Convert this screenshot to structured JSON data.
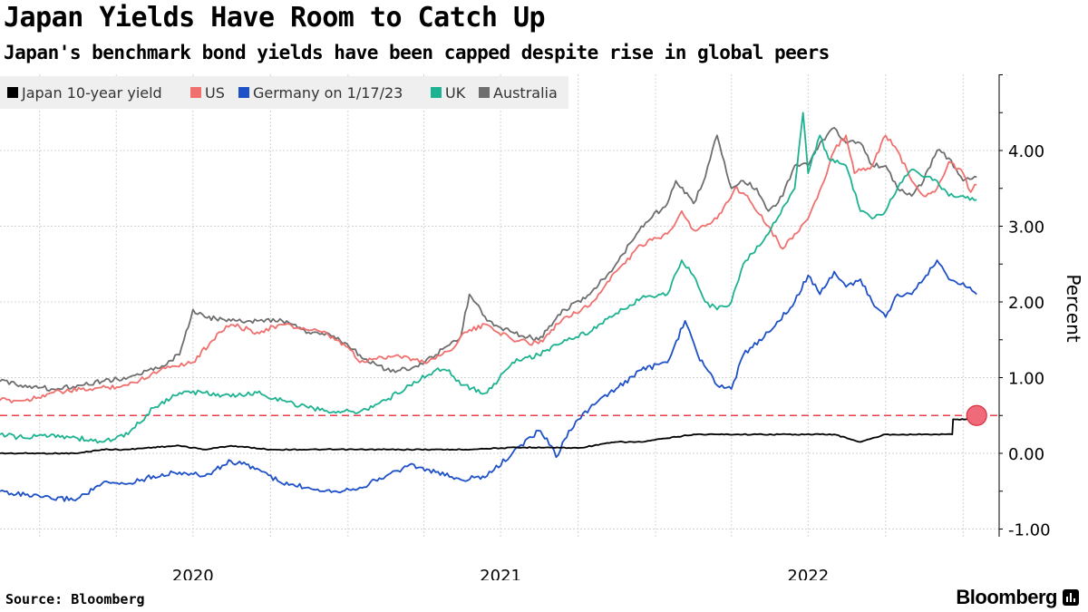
{
  "header": {
    "title": "Japan Yields Have Room to Catch Up",
    "subtitle": "Japan's benchmark bond yields have been capped despite rise in global peers"
  },
  "footer": {
    "source": "Source: Bloomberg",
    "brand": "Bloomberg"
  },
  "icons": {
    "brand": "bloomberg-logo-icon"
  },
  "chart_data": {
    "type": "line",
    "title": "Japan Yields Have Room to Catch Up",
    "subtitle": "Japan's benchmark bond yields have been capped despite rise in global peers",
    "ylabel": "Percent",
    "ylim": [
      -1.0,
      5.0
    ],
    "yticks": [
      -1.0,
      0.0,
      1.0,
      2.0,
      3.0,
      4.0
    ],
    "ytick_labels": [
      "-1.00",
      "0.00",
      "1.00",
      "2.00",
      "3.00",
      "4.00"
    ],
    "x_range": [
      "2019-11-15",
      "2023-01-20"
    ],
    "xtick_labels": [
      {
        "label": "2020",
        "date": "2020-07-01"
      },
      {
        "label": "2021",
        "date": "2021-07-01"
      },
      {
        "label": "2022",
        "date": "2022-07-01"
      }
    ],
    "grid": true,
    "legend_position": "top-left",
    "reference_line": {
      "value": 0.5,
      "color": "#e8404a",
      "style": "dashed"
    },
    "highlight_point": {
      "date": "2023-01-17",
      "value": 0.5,
      "color": "#f06b7a"
    },
    "series": [
      {
        "name": "Japan 10-year yield",
        "color": "#000000",
        "points": [
          [
            "2019-11-15",
            0.0
          ],
          [
            "2020-01-01",
            0.0
          ],
          [
            "2020-02-15",
            0.0
          ],
          [
            "2020-03-15",
            0.05
          ],
          [
            "2020-04-15",
            0.05
          ],
          [
            "2020-05-15",
            0.08
          ],
          [
            "2020-06-15",
            0.1
          ],
          [
            "2020-07-15",
            0.05
          ],
          [
            "2020-08-15",
            0.1
          ],
          [
            "2020-10-01",
            0.05
          ],
          [
            "2020-12-01",
            0.05
          ],
          [
            "2021-01-01",
            0.05
          ],
          [
            "2021-02-15",
            0.05
          ],
          [
            "2021-03-15",
            0.05
          ],
          [
            "2021-05-15",
            0.05
          ],
          [
            "2021-07-01",
            0.07
          ],
          [
            "2021-08-15",
            0.08
          ],
          [
            "2021-10-01",
            0.07
          ],
          [
            "2021-11-15",
            0.15
          ],
          [
            "2021-12-15",
            0.15
          ],
          [
            "2022-01-15",
            0.2
          ],
          [
            "2022-02-15",
            0.25
          ],
          [
            "2022-03-15",
            0.25
          ],
          [
            "2022-05-01",
            0.25
          ],
          [
            "2022-06-15",
            0.25
          ],
          [
            "2022-08-01",
            0.25
          ],
          [
            "2022-09-01",
            0.15
          ],
          [
            "2022-10-01",
            0.25
          ],
          [
            "2022-11-15",
            0.25
          ],
          [
            "2022-12-01",
            0.25
          ],
          [
            "2022-12-19",
            0.25
          ],
          [
            "2022-12-20",
            0.45
          ],
          [
            "2023-01-05",
            0.45
          ],
          [
            "2023-01-17",
            0.5
          ]
        ]
      },
      {
        "name": "US",
        "color": "#f0706e",
        "points": [
          [
            "2019-11-15",
            0.7
          ],
          [
            "2019-12-15",
            0.7
          ],
          [
            "2020-01-15",
            0.8
          ],
          [
            "2020-03-01",
            0.85
          ],
          [
            "2020-04-15",
            0.9
          ],
          [
            "2020-06-01",
            1.15
          ],
          [
            "2020-07-01",
            1.2
          ],
          [
            "2020-08-01",
            1.6
          ],
          [
            "2020-08-15",
            1.7
          ],
          [
            "2020-09-15",
            1.6
          ],
          [
            "2020-10-15",
            1.7
          ],
          [
            "2020-12-01",
            1.6
          ],
          [
            "2021-01-01",
            1.4
          ],
          [
            "2021-01-15",
            1.2
          ],
          [
            "2021-02-01",
            1.25
          ],
          [
            "2021-03-01",
            1.3
          ],
          [
            "2021-04-01",
            1.2
          ],
          [
            "2021-05-01",
            1.35
          ],
          [
            "2021-05-20",
            1.6
          ],
          [
            "2021-06-15",
            1.7
          ],
          [
            "2021-07-15",
            1.5
          ],
          [
            "2021-08-15",
            1.45
          ],
          [
            "2021-09-15",
            1.8
          ],
          [
            "2021-10-15",
            1.95
          ],
          [
            "2021-11-15",
            2.4
          ],
          [
            "2021-12-15",
            2.75
          ],
          [
            "2022-01-15",
            2.9
          ],
          [
            "2022-02-01",
            3.2
          ],
          [
            "2022-02-15",
            2.95
          ],
          [
            "2022-03-01",
            3.0
          ],
          [
            "2022-03-15",
            3.1
          ],
          [
            "2022-04-05",
            3.5
          ],
          [
            "2022-04-20",
            3.4
          ],
          [
            "2022-05-15",
            3.0
          ],
          [
            "2022-06-01",
            2.7
          ],
          [
            "2022-06-15",
            2.9
          ],
          [
            "2022-07-01",
            3.1
          ],
          [
            "2022-07-20",
            3.6
          ],
          [
            "2022-08-01",
            4.0
          ],
          [
            "2022-08-15",
            4.2
          ],
          [
            "2022-08-25",
            3.7
          ],
          [
            "2022-09-15",
            3.8
          ],
          [
            "2022-10-01",
            4.2
          ],
          [
            "2022-10-15",
            4.0
          ],
          [
            "2022-11-01",
            3.6
          ],
          [
            "2022-11-15",
            3.4
          ],
          [
            "2022-12-01",
            3.5
          ],
          [
            "2022-12-15",
            3.85
          ],
          [
            "2023-01-01",
            3.7
          ],
          [
            "2023-01-10",
            3.45
          ],
          [
            "2023-01-17",
            3.55
          ]
        ]
      },
      {
        "name": "Germany on 1/17/23",
        "color": "#1e50c8",
        "points": [
          [
            "2019-11-15",
            -0.5
          ],
          [
            "2019-12-15",
            -0.55
          ],
          [
            "2020-01-15",
            -0.6
          ],
          [
            "2020-02-15",
            -0.6
          ],
          [
            "2020-03-15",
            -0.4
          ],
          [
            "2020-04-15",
            -0.4
          ],
          [
            "2020-05-15",
            -0.3
          ],
          [
            "2020-06-15",
            -0.25
          ],
          [
            "2020-07-15",
            -0.3
          ],
          [
            "2020-08-15",
            -0.1
          ],
          [
            "2020-09-15",
            -0.2
          ],
          [
            "2020-10-15",
            -0.4
          ],
          [
            "2020-11-15",
            -0.45
          ],
          [
            "2020-12-15",
            -0.5
          ],
          [
            "2021-01-15",
            -0.45
          ],
          [
            "2021-02-15",
            -0.3
          ],
          [
            "2021-03-15",
            -0.15
          ],
          [
            "2021-04-15",
            -0.25
          ],
          [
            "2021-05-15",
            -0.35
          ],
          [
            "2021-06-15",
            -0.3
          ],
          [
            "2021-07-15",
            0.0
          ],
          [
            "2021-08-15",
            0.3
          ],
          [
            "2021-08-25",
            0.2
          ],
          [
            "2021-09-05",
            -0.05
          ],
          [
            "2021-09-20",
            0.3
          ],
          [
            "2021-10-15",
            0.6
          ],
          [
            "2021-11-15",
            0.85
          ],
          [
            "2021-12-15",
            1.1
          ],
          [
            "2022-01-15",
            1.2
          ],
          [
            "2022-02-05",
            1.75
          ],
          [
            "2022-02-20",
            1.3
          ],
          [
            "2022-03-15",
            0.9
          ],
          [
            "2022-04-01",
            0.85
          ],
          [
            "2022-04-15",
            1.3
          ],
          [
            "2022-05-15",
            1.6
          ],
          [
            "2022-06-15",
            2.0
          ],
          [
            "2022-07-01",
            2.35
          ],
          [
            "2022-07-15",
            2.1
          ],
          [
            "2022-08-01",
            2.4
          ],
          [
            "2022-08-15",
            2.2
          ],
          [
            "2022-09-01",
            2.3
          ],
          [
            "2022-09-15",
            2.0
          ],
          [
            "2022-10-01",
            1.8
          ],
          [
            "2022-10-15",
            2.1
          ],
          [
            "2022-11-01",
            2.1
          ],
          [
            "2022-11-15",
            2.3
          ],
          [
            "2022-12-01",
            2.55
          ],
          [
            "2022-12-15",
            2.3
          ],
          [
            "2023-01-01",
            2.25
          ],
          [
            "2023-01-17",
            2.1
          ]
        ]
      },
      {
        "name": "UK",
        "color": "#1db390",
        "points": [
          [
            "2019-11-15",
            0.25
          ],
          [
            "2019-12-15",
            0.2
          ],
          [
            "2020-01-15",
            0.25
          ],
          [
            "2020-02-15",
            0.2
          ],
          [
            "2020-03-15",
            0.15
          ],
          [
            "2020-04-15",
            0.25
          ],
          [
            "2020-05-15",
            0.6
          ],
          [
            "2020-06-15",
            0.8
          ],
          [
            "2020-07-15",
            0.8
          ],
          [
            "2020-08-15",
            0.75
          ],
          [
            "2020-09-15",
            0.8
          ],
          [
            "2020-10-15",
            0.7
          ],
          [
            "2020-11-15",
            0.6
          ],
          [
            "2020-12-15",
            0.55
          ],
          [
            "2021-01-15",
            0.55
          ],
          [
            "2021-02-15",
            0.7
          ],
          [
            "2021-03-15",
            0.9
          ],
          [
            "2021-04-15",
            1.1
          ],
          [
            "2021-05-01",
            1.1
          ],
          [
            "2021-05-15",
            0.9
          ],
          [
            "2021-06-15",
            0.8
          ],
          [
            "2021-07-15",
            1.2
          ],
          [
            "2021-08-15",
            1.3
          ],
          [
            "2021-09-15",
            1.5
          ],
          [
            "2021-10-15",
            1.6
          ],
          [
            "2021-11-15",
            1.85
          ],
          [
            "2021-12-15",
            2.05
          ],
          [
            "2022-01-15",
            2.1
          ],
          [
            "2022-02-01",
            2.55
          ],
          [
            "2022-02-15",
            2.35
          ],
          [
            "2022-03-01",
            2.0
          ],
          [
            "2022-03-15",
            1.9
          ],
          [
            "2022-04-01",
            2.0
          ],
          [
            "2022-04-15",
            2.5
          ],
          [
            "2022-05-15",
            2.9
          ],
          [
            "2022-06-01",
            3.25
          ],
          [
            "2022-06-15",
            3.5
          ],
          [
            "2022-06-25",
            4.5
          ],
          [
            "2022-07-01",
            3.7
          ],
          [
            "2022-07-15",
            4.2
          ],
          [
            "2022-07-25",
            3.9
          ],
          [
            "2022-08-15",
            3.8
          ],
          [
            "2022-09-01",
            3.2
          ],
          [
            "2022-09-15",
            3.1
          ],
          [
            "2022-10-01",
            3.2
          ],
          [
            "2022-10-15",
            3.5
          ],
          [
            "2022-11-01",
            3.75
          ],
          [
            "2022-11-15",
            3.65
          ],
          [
            "2022-12-01",
            3.6
          ],
          [
            "2022-12-15",
            3.4
          ],
          [
            "2023-01-01",
            3.4
          ],
          [
            "2023-01-17",
            3.35
          ]
        ]
      },
      {
        "name": "Australia",
        "color": "#6e6e6e",
        "points": [
          [
            "2019-11-15",
            0.95
          ],
          [
            "2019-12-15",
            0.9
          ],
          [
            "2020-01-15",
            0.85
          ],
          [
            "2020-02-15",
            0.9
          ],
          [
            "2020-03-15",
            0.95
          ],
          [
            "2020-04-15",
            1.0
          ],
          [
            "2020-05-15",
            1.1
          ],
          [
            "2020-06-15",
            1.3
          ],
          [
            "2020-07-01",
            1.9
          ],
          [
            "2020-07-15",
            1.8
          ],
          [
            "2020-08-15",
            1.75
          ],
          [
            "2020-09-15",
            1.75
          ],
          [
            "2020-10-15",
            1.75
          ],
          [
            "2020-11-15",
            1.6
          ],
          [
            "2020-12-15",
            1.55
          ],
          [
            "2021-01-15",
            1.3
          ],
          [
            "2021-02-15",
            1.1
          ],
          [
            "2021-03-15",
            1.1
          ],
          [
            "2021-04-15",
            1.3
          ],
          [
            "2021-05-15",
            1.55
          ],
          [
            "2021-05-25",
            2.1
          ],
          [
            "2021-06-15",
            1.75
          ],
          [
            "2021-07-15",
            1.6
          ],
          [
            "2021-08-15",
            1.5
          ],
          [
            "2021-09-15",
            1.9
          ],
          [
            "2021-10-15",
            2.1
          ],
          [
            "2021-11-15",
            2.5
          ],
          [
            "2021-12-15",
            3.0
          ],
          [
            "2022-01-15",
            3.3
          ],
          [
            "2022-01-25",
            3.6
          ],
          [
            "2022-02-15",
            3.3
          ],
          [
            "2022-03-01",
            3.65
          ],
          [
            "2022-03-15",
            4.2
          ],
          [
            "2022-04-01",
            3.5
          ],
          [
            "2022-04-15",
            3.6
          ],
          [
            "2022-05-01",
            3.5
          ],
          [
            "2022-05-15",
            3.2
          ],
          [
            "2022-06-01",
            3.4
          ],
          [
            "2022-06-15",
            3.8
          ],
          [
            "2022-07-01",
            3.8
          ],
          [
            "2022-07-15",
            4.1
          ],
          [
            "2022-08-01",
            4.3
          ],
          [
            "2022-08-15",
            4.1
          ],
          [
            "2022-09-01",
            4.1
          ],
          [
            "2022-09-15",
            3.8
          ],
          [
            "2022-10-01",
            3.8
          ],
          [
            "2022-10-15",
            3.5
          ],
          [
            "2022-11-01",
            3.4
          ],
          [
            "2022-11-15",
            3.6
          ],
          [
            "2022-12-01",
            4.0
          ],
          [
            "2022-12-15",
            3.9
          ],
          [
            "2023-01-01",
            3.6
          ],
          [
            "2023-01-17",
            3.65
          ]
        ]
      }
    ]
  }
}
